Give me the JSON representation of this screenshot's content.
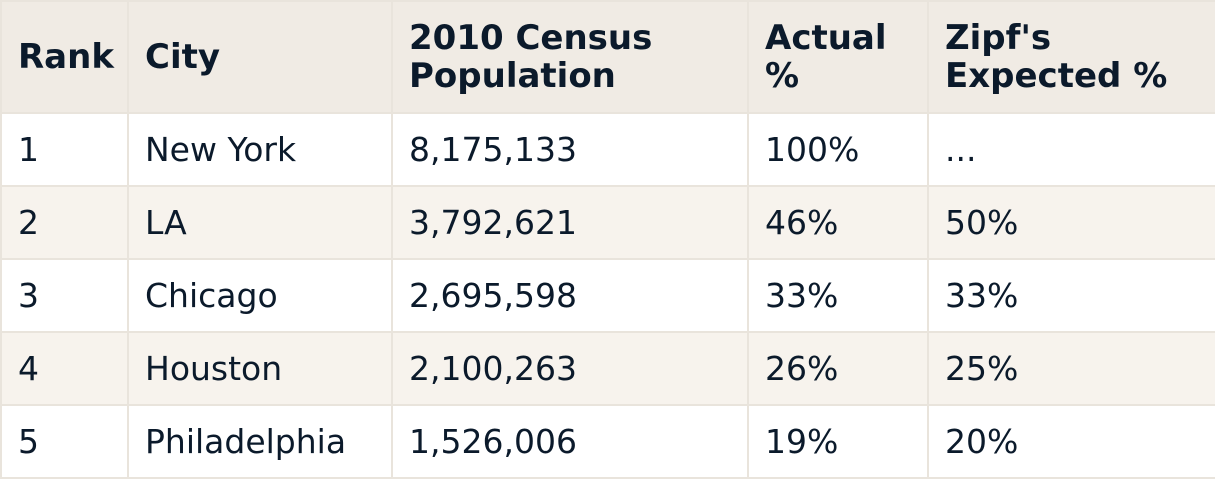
{
  "chart_data": {
    "type": "table",
    "columns": [
      "Rank",
      "City",
      "2010 Census Population",
      "Actual %",
      "Zipf's Expected %"
    ],
    "rows": [
      [
        "1",
        "New York",
        "8,175,133",
        "100%",
        "..."
      ],
      [
        "2",
        "LA",
        "3,792,621",
        "46%",
        "50%"
      ],
      [
        "3",
        "Chicago",
        "2,695,598",
        "33%",
        "33%"
      ],
      [
        "4",
        "Houston",
        "2,100,263",
        "26%",
        "25%"
      ],
      [
        "5",
        "Philadelphia",
        "1,526,006",
        "19%",
        "20%"
      ]
    ],
    "header": {
      "rank": "Rank",
      "city": "City",
      "population_l1": "2010 Census",
      "population_l2": "Population",
      "actual_l1": "Actual",
      "actual_l2": "%",
      "zipf_l1": "Zipf's",
      "zipf_l2": "Expected %"
    }
  },
  "colors": {
    "header_bg": "#f0ebe4",
    "row_alt_bg": "#f7f3ed",
    "row_bg": "#ffffff",
    "border": "#e9e4dc",
    "text": "#0b1a2b"
  }
}
